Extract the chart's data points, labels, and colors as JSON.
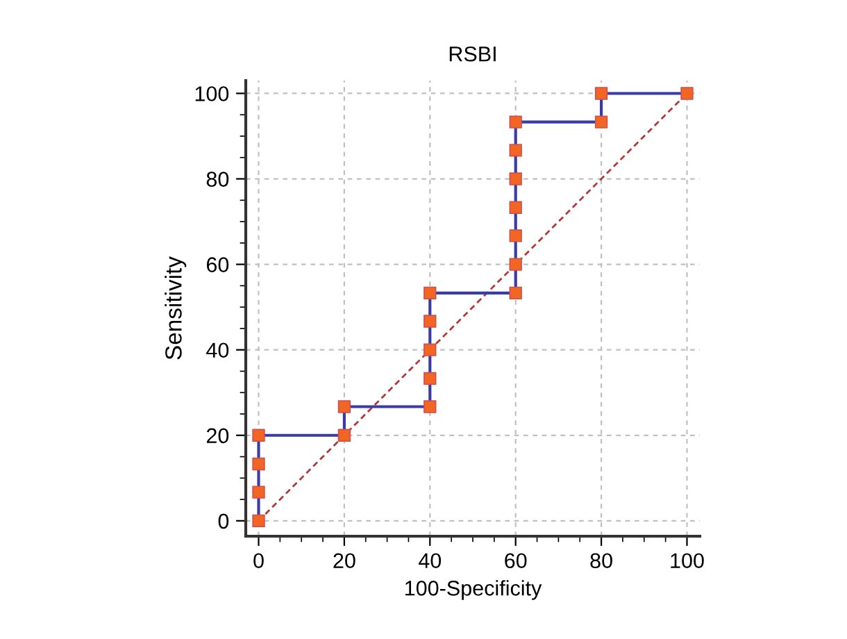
{
  "chart_data": {
    "type": "line",
    "title": "RSBI",
    "xlabel": "100-Specificity",
    "ylabel": "Sensitivity",
    "xlim": [
      -3,
      103
    ],
    "ylim": [
      -3.6,
      103
    ],
    "xticks": [
      0,
      20,
      40,
      60,
      80,
      100
    ],
    "yticks": [
      0,
      20,
      40,
      60,
      80,
      100
    ],
    "grid": true,
    "series": [
      {
        "color": "#3b3ba8",
        "marker": "square",
        "line_style": "solid",
        "x": [
          0,
          0,
          0,
          0,
          20,
          20,
          40,
          40,
          40,
          40,
          40,
          60,
          60,
          60,
          60,
          60,
          60,
          60,
          80,
          80,
          100
        ],
        "values": [
          0,
          6.7,
          13.3,
          20,
          20,
          26.7,
          26.7,
          33.3,
          40,
          46.7,
          53.3,
          53.3,
          60,
          66.7,
          73.3,
          80,
          86.7,
          93.3,
          93.3,
          100,
          100
        ]
      },
      {
        "color": "#b03a3a",
        "marker": "none",
        "line_style": "dashed",
        "x": [
          0,
          100
        ],
        "values": [
          0,
          100
        ]
      }
    ]
  }
}
